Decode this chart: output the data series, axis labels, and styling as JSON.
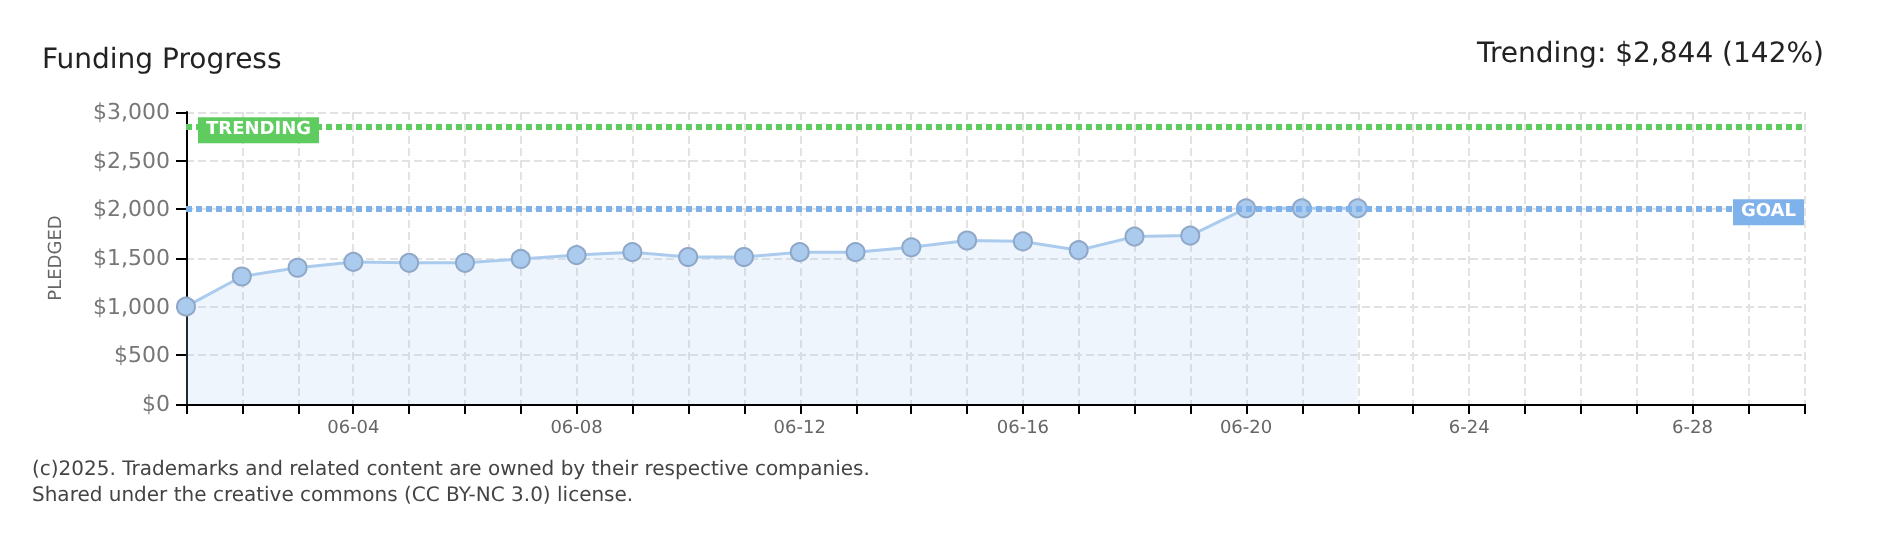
{
  "chart_data": {
    "type": "area",
    "title": "Funding Progress",
    "ylabel": "PLEDGED",
    "categories": [
      null,
      null,
      null,
      "06-04",
      null,
      null,
      null,
      "06-08",
      null,
      null,
      null,
      "06-12",
      null,
      null,
      null,
      "06-16",
      null,
      null,
      null,
      "06-20",
      null,
      null,
      null,
      "6-24",
      null,
      null,
      null,
      "6-28",
      null,
      null
    ],
    "series": [
      {
        "color": "#aacbee",
        "values": [
          1000,
          1310,
          1400,
          1460,
          1450,
          1450,
          1490,
          1530,
          1560,
          1510,
          1510,
          1560,
          1560,
          1610,
          1680,
          1670,
          1580,
          1720,
          1730,
          2010,
          2010,
          2010,
          null,
          null,
          null,
          null,
          null,
          null,
          null,
          null
        ]
      }
    ],
    "ylim": [
      0,
      3000
    ],
    "yticks": [
      {
        "value": 0,
        "label": "$0"
      },
      {
        "value": 500,
        "label": "$500"
      },
      {
        "value": 1000,
        "label": "$1,000"
      },
      {
        "value": 1500,
        "label": "$1,500"
      },
      {
        "value": 2000,
        "label": "$2,000"
      },
      {
        "value": 2500,
        "label": "$2,500"
      },
      {
        "value": 3000,
        "label": "$3,000"
      }
    ],
    "grid": true,
    "marker": "circle",
    "ref_lines": [
      {
        "axis": "y",
        "value": 2844,
        "label": "TRENDING",
        "color": "#5fcc5f",
        "line_style": "dotted"
      },
      {
        "axis": "y",
        "value": 2000,
        "label": "GOAL",
        "color": "#7fb2ea",
        "line_style": "dotted"
      }
    ],
    "annotations": [
      "Trending: $2,844 (142%)",
      "(c)2025. Trademarks and related content are owned by their respective companies.",
      "Shared under the creative commons (CC BY-NC 3.0) license."
    ]
  }
}
